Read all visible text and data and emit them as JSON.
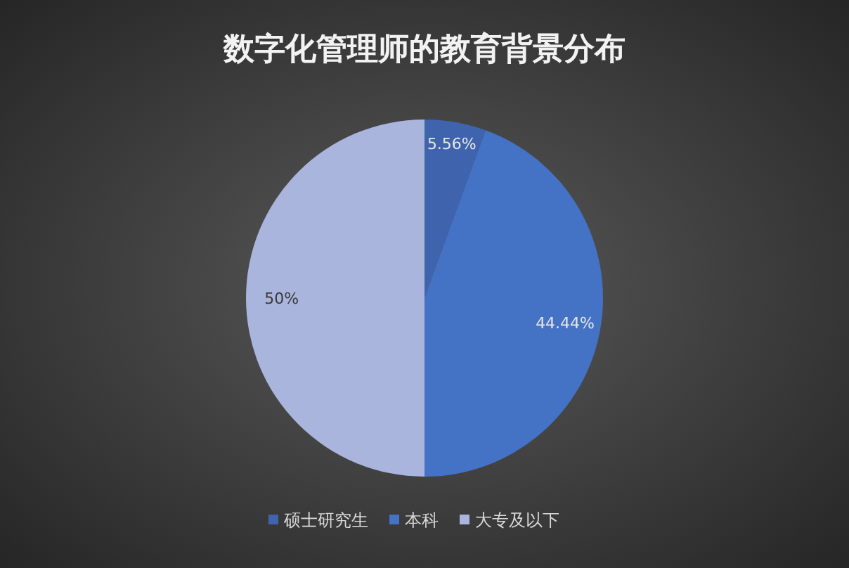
{
  "chart_data": {
    "type": "pie",
    "title": "数字化管理师的教育背景分布",
    "categories": [
      "硕士研究生",
      "本科",
      "大专及以下"
    ],
    "values": [
      5.56,
      44.44,
      50
    ],
    "colors": [
      "#3f64ad",
      "#4472c4",
      "#a9b5dc"
    ],
    "value_labels": [
      "5.56%",
      "44.44%",
      "50%"
    ],
    "legend": "bottom"
  }
}
